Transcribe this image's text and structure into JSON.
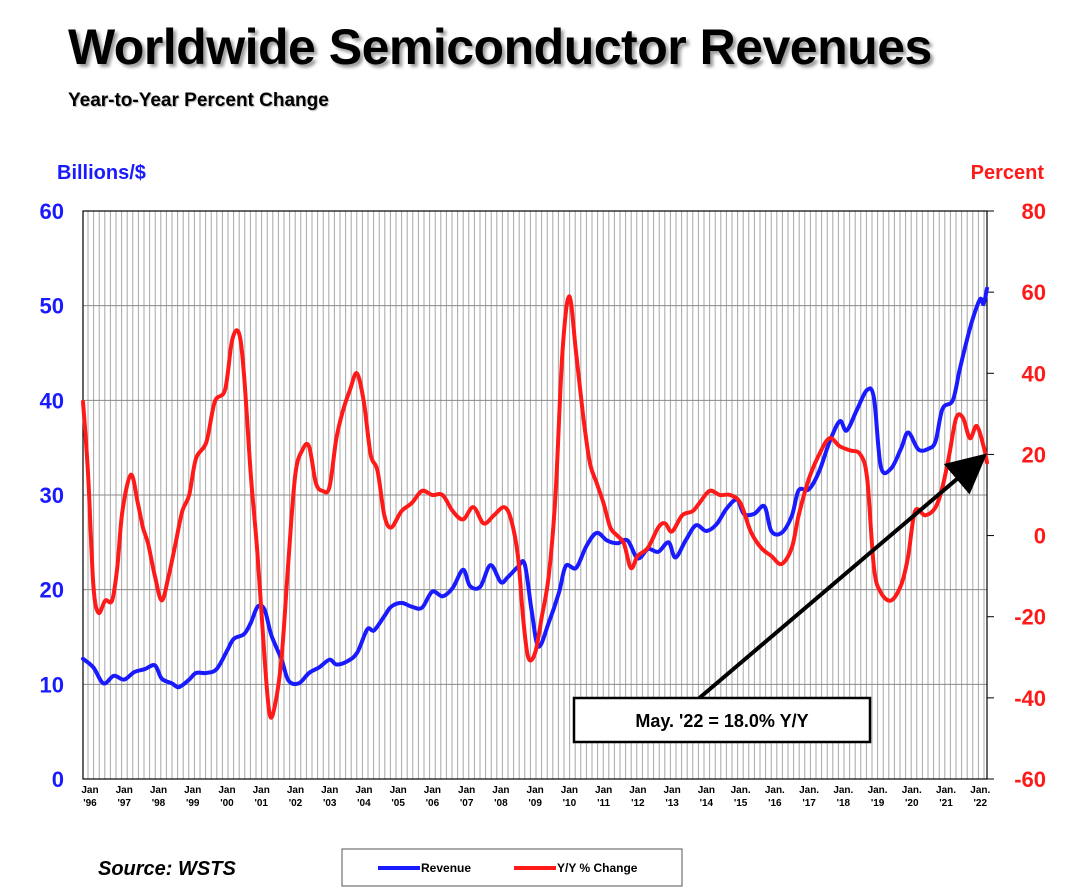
{
  "chart_data": {
    "type": "line",
    "title": "Worldwide Semiconductor Revenues",
    "subtitle": "Year-to-Year Percent Change",
    "source": "Source: WSTS",
    "y_left": {
      "label": "Billions/$",
      "ticks": [
        "0",
        "10",
        "20",
        "30",
        "40",
        "50",
        "60"
      ],
      "range": [
        0,
        60
      ]
    },
    "y_right": {
      "label": "Percent",
      "ticks": [
        "-60",
        "-40",
        "-20",
        "0",
        "20",
        "40",
        "60",
        "80"
      ],
      "range": [
        -60,
        80
      ]
    },
    "x_range": [
      1996.0,
      2022.4
    ],
    "x_ticks": [
      {
        "top": "Jan",
        "bottom": "'96",
        "x": 1996
      },
      {
        "top": "Jan",
        "bottom": "'97",
        "x": 1997
      },
      {
        "top": "Jan",
        "bottom": "'98",
        "x": 1998
      },
      {
        "top": "Jan",
        "bottom": "'99",
        "x": 1999
      },
      {
        "top": "Jan",
        "bottom": "'00",
        "x": 2000
      },
      {
        "top": "Jan",
        "bottom": "'01",
        "x": 2001
      },
      {
        "top": "Jan",
        "bottom": "'02",
        "x": 2002
      },
      {
        "top": "Jan",
        "bottom": "'03",
        "x": 2003
      },
      {
        "top": "Jan",
        "bottom": "'04",
        "x": 2004
      },
      {
        "top": "Jan",
        "bottom": "'05",
        "x": 2005
      },
      {
        "top": "Jan",
        "bottom": "'06",
        "x": 2006
      },
      {
        "top": "Jan",
        "bottom": "'07",
        "x": 2007
      },
      {
        "top": "Jan",
        "bottom": "'08",
        "x": 2008
      },
      {
        "top": "Jan",
        "bottom": "'09",
        "x": 2009
      },
      {
        "top": "Jan",
        "bottom": "'10",
        "x": 2010
      },
      {
        "top": "Jan",
        "bottom": "'11",
        "x": 2011
      },
      {
        "top": "Jan",
        "bottom": "'12",
        "x": 2012
      },
      {
        "top": "Jan",
        "bottom": "'13",
        "x": 2013
      },
      {
        "top": "Jan",
        "bottom": "'14",
        "x": 2014
      },
      {
        "top": "Jan.",
        "bottom": "'15",
        "x": 2015
      },
      {
        "top": "Jan.",
        "bottom": "'16",
        "x": 2016
      },
      {
        "top": "Jan.",
        "bottom": "'17",
        "x": 2017
      },
      {
        "top": "Jan.",
        "bottom": "'18",
        "x": 2018
      },
      {
        "top": "Jan.",
        "bottom": "'19",
        "x": 2019
      },
      {
        "top": "Jan.",
        "bottom": "'20",
        "x": 2020
      },
      {
        "top": "Jan.",
        "bottom": "'21",
        "x": 2021
      },
      {
        "top": "Jan.",
        "bottom": "'22",
        "x": 2022
      }
    ],
    "grid": true,
    "series": [
      {
        "name": "Revenue",
        "color": "#1a1aff",
        "axis": "left",
        "points": [
          [
            1996.0,
            12.7
          ],
          [
            1996.3,
            11.8
          ],
          [
            1996.6,
            10.1
          ],
          [
            1996.9,
            10.9
          ],
          [
            1997.2,
            10.5
          ],
          [
            1997.5,
            11.3
          ],
          [
            1997.8,
            11.6
          ],
          [
            1998.1,
            12.0
          ],
          [
            1998.3,
            10.6
          ],
          [
            1998.6,
            10.1
          ],
          [
            1998.8,
            9.7
          ],
          [
            1999.1,
            10.5
          ],
          [
            1999.3,
            11.2
          ],
          [
            1999.6,
            11.2
          ],
          [
            1999.9,
            11.6
          ],
          [
            2000.2,
            13.5
          ],
          [
            2000.4,
            14.8
          ],
          [
            2000.7,
            15.3
          ],
          [
            2000.9,
            16.5
          ],
          [
            2001.1,
            18.2
          ],
          [
            2001.3,
            17.9
          ],
          [
            2001.5,
            15.2
          ],
          [
            2001.8,
            12.6
          ],
          [
            2002.0,
            10.4
          ],
          [
            2002.3,
            10.1
          ],
          [
            2002.6,
            11.2
          ],
          [
            2002.9,
            11.8
          ],
          [
            2003.2,
            12.6
          ],
          [
            2003.4,
            12.1
          ],
          [
            2003.7,
            12.4
          ],
          [
            2004.0,
            13.3
          ],
          [
            2004.3,
            15.8
          ],
          [
            2004.5,
            15.7
          ],
          [
            2004.8,
            17.2
          ],
          [
            2005.0,
            18.2
          ],
          [
            2005.3,
            18.6
          ],
          [
            2005.6,
            18.2
          ],
          [
            2005.9,
            18.1
          ],
          [
            2006.2,
            19.8
          ],
          [
            2006.5,
            19.3
          ],
          [
            2006.8,
            20.2
          ],
          [
            2007.1,
            22.1
          ],
          [
            2007.3,
            20.4
          ],
          [
            2007.6,
            20.3
          ],
          [
            2007.9,
            22.6
          ],
          [
            2008.2,
            20.8
          ],
          [
            2008.4,
            21.3
          ],
          [
            2008.7,
            22.4
          ],
          [
            2008.9,
            22.7
          ],
          [
            2009.1,
            17.8
          ],
          [
            2009.3,
            14.0
          ],
          [
            2009.6,
            16.5
          ],
          [
            2009.9,
            19.7
          ],
          [
            2010.1,
            22.5
          ],
          [
            2010.4,
            22.3
          ],
          [
            2010.7,
            24.6
          ],
          [
            2011.0,
            26.0
          ],
          [
            2011.3,
            25.2
          ],
          [
            2011.6,
            24.9
          ],
          [
            2011.9,
            25.2
          ],
          [
            2012.2,
            23.3
          ],
          [
            2012.5,
            24.3
          ],
          [
            2012.8,
            24.0
          ],
          [
            2013.1,
            25.0
          ],
          [
            2013.3,
            23.4
          ],
          [
            2013.6,
            25.2
          ],
          [
            2013.9,
            26.8
          ],
          [
            2014.2,
            26.2
          ],
          [
            2014.5,
            26.9
          ],
          [
            2014.8,
            28.6
          ],
          [
            2015.1,
            29.5
          ],
          [
            2015.3,
            28.0
          ],
          [
            2015.6,
            28.0
          ],
          [
            2015.9,
            28.8
          ],
          [
            2016.1,
            26.2
          ],
          [
            2016.4,
            26.0
          ],
          [
            2016.7,
            27.8
          ],
          [
            2016.9,
            30.5
          ],
          [
            2017.2,
            30.6
          ],
          [
            2017.5,
            32.5
          ],
          [
            2017.8,
            35.6
          ],
          [
            2018.1,
            37.8
          ],
          [
            2018.3,
            36.8
          ],
          [
            2018.6,
            39.0
          ],
          [
            2018.9,
            41.1
          ],
          [
            2019.1,
            40.2
          ],
          [
            2019.3,
            33.0
          ],
          [
            2019.6,
            32.8
          ],
          [
            2019.9,
            35.0
          ],
          [
            2020.1,
            36.6
          ],
          [
            2020.4,
            34.8
          ],
          [
            2020.7,
            34.9
          ],
          [
            2020.9,
            35.7
          ],
          [
            2021.1,
            39.1
          ],
          [
            2021.4,
            40.0
          ],
          [
            2021.6,
            43.2
          ],
          [
            2021.8,
            46.2
          ],
          [
            2022.0,
            48.8
          ],
          [
            2022.2,
            50.7
          ],
          [
            2022.3,
            50.2
          ],
          [
            2022.4,
            51.8
          ]
        ]
      },
      {
        "name": "Y/Y % Change",
        "color": "#ff1a1a",
        "axis": "right",
        "points": [
          [
            1996.0,
            33
          ],
          [
            1996.15,
            15
          ],
          [
            1996.3,
            -12
          ],
          [
            1996.45,
            -19
          ],
          [
            1996.65,
            -16
          ],
          [
            1996.85,
            -16
          ],
          [
            1997.0,
            -8
          ],
          [
            1997.15,
            6
          ],
          [
            1997.4,
            15
          ],
          [
            1997.6,
            8
          ],
          [
            1997.75,
            2
          ],
          [
            1997.9,
            -2
          ],
          [
            1998.1,
            -10
          ],
          [
            1998.3,
            -16
          ],
          [
            1998.5,
            -10
          ],
          [
            1998.7,
            -2
          ],
          [
            1998.9,
            6
          ],
          [
            1999.1,
            10
          ],
          [
            1999.3,
            19
          ],
          [
            1999.6,
            23
          ],
          [
            1999.85,
            33
          ],
          [
            2000.15,
            36
          ],
          [
            2000.35,
            48
          ],
          [
            2000.55,
            50
          ],
          [
            2000.7,
            40
          ],
          [
            2000.9,
            15
          ],
          [
            2001.1,
            -5
          ],
          [
            2001.3,
            -30
          ],
          [
            2001.45,
            -44
          ],
          [
            2001.6,
            -42
          ],
          [
            2001.8,
            -30
          ],
          [
            2002.0,
            -6
          ],
          [
            2002.2,
            15
          ],
          [
            2002.4,
            21
          ],
          [
            2002.6,
            22
          ],
          [
            2002.8,
            13
          ],
          [
            2003.0,
            11
          ],
          [
            2003.2,
            12
          ],
          [
            2003.4,
            24
          ],
          [
            2003.6,
            31
          ],
          [
            2003.8,
            36
          ],
          [
            2004.0,
            40
          ],
          [
            2004.2,
            33
          ],
          [
            2004.4,
            20
          ],
          [
            2004.6,
            16
          ],
          [
            2004.8,
            5
          ],
          [
            2005.0,
            2
          ],
          [
            2005.3,
            6
          ],
          [
            2005.6,
            8
          ],
          [
            2005.9,
            11
          ],
          [
            2006.2,
            10
          ],
          [
            2006.5,
            10
          ],
          [
            2006.8,
            6
          ],
          [
            2007.1,
            4
          ],
          [
            2007.4,
            7
          ],
          [
            2007.7,
            3
          ],
          [
            2008.0,
            5
          ],
          [
            2008.3,
            7
          ],
          [
            2008.5,
            4
          ],
          [
            2008.7,
            -5
          ],
          [
            2008.85,
            -20
          ],
          [
            2009.0,
            -30
          ],
          [
            2009.2,
            -29
          ],
          [
            2009.4,
            -20
          ],
          [
            2009.6,
            -10
          ],
          [
            2009.8,
            10
          ],
          [
            2010.0,
            45
          ],
          [
            2010.2,
            59
          ],
          [
            2010.4,
            45
          ],
          [
            2010.6,
            30
          ],
          [
            2010.8,
            18
          ],
          [
            2011.0,
            13
          ],
          [
            2011.2,
            8
          ],
          [
            2011.4,
            2
          ],
          [
            2011.6,
            0
          ],
          [
            2011.8,
            -2
          ],
          [
            2012.0,
            -8
          ],
          [
            2012.2,
            -5
          ],
          [
            2012.5,
            -3
          ],
          [
            2012.8,
            2
          ],
          [
            2013.0,
            3
          ],
          [
            2013.2,
            1
          ],
          [
            2013.5,
            5
          ],
          [
            2013.8,
            6
          ],
          [
            2014.0,
            8
          ],
          [
            2014.3,
            11
          ],
          [
            2014.6,
            10
          ],
          [
            2014.9,
            10
          ],
          [
            2015.2,
            8
          ],
          [
            2015.5,
            1
          ],
          [
            2015.8,
            -3
          ],
          [
            2016.1,
            -5
          ],
          [
            2016.4,
            -7
          ],
          [
            2016.7,
            -3
          ],
          [
            2016.9,
            5
          ],
          [
            2017.2,
            14
          ],
          [
            2017.5,
            20
          ],
          [
            2017.8,
            24
          ],
          [
            2018.1,
            22
          ],
          [
            2018.4,
            21
          ],
          [
            2018.7,
            20
          ],
          [
            2018.9,
            14
          ],
          [
            2019.1,
            -8
          ],
          [
            2019.3,
            -14
          ],
          [
            2019.6,
            -16
          ],
          [
            2019.9,
            -12
          ],
          [
            2020.1,
            -5
          ],
          [
            2020.3,
            6
          ],
          [
            2020.6,
            5
          ],
          [
            2020.9,
            7
          ],
          [
            2021.1,
            12
          ],
          [
            2021.3,
            20
          ],
          [
            2021.5,
            29
          ],
          [
            2021.7,
            29
          ],
          [
            2021.9,
            24
          ],
          [
            2022.1,
            27
          ],
          [
            2022.3,
            22
          ],
          [
            2022.4,
            18
          ]
        ]
      }
    ],
    "annotation": {
      "text": "May. '22 = 18.0% Y/Y",
      "points_to": [
        2022.4,
        18.0
      ],
      "arrow_from_x": 2014.0
    },
    "legend": {
      "position": "bottom",
      "items": [
        "Revenue",
        "Y/Y % Change"
      ]
    }
  }
}
